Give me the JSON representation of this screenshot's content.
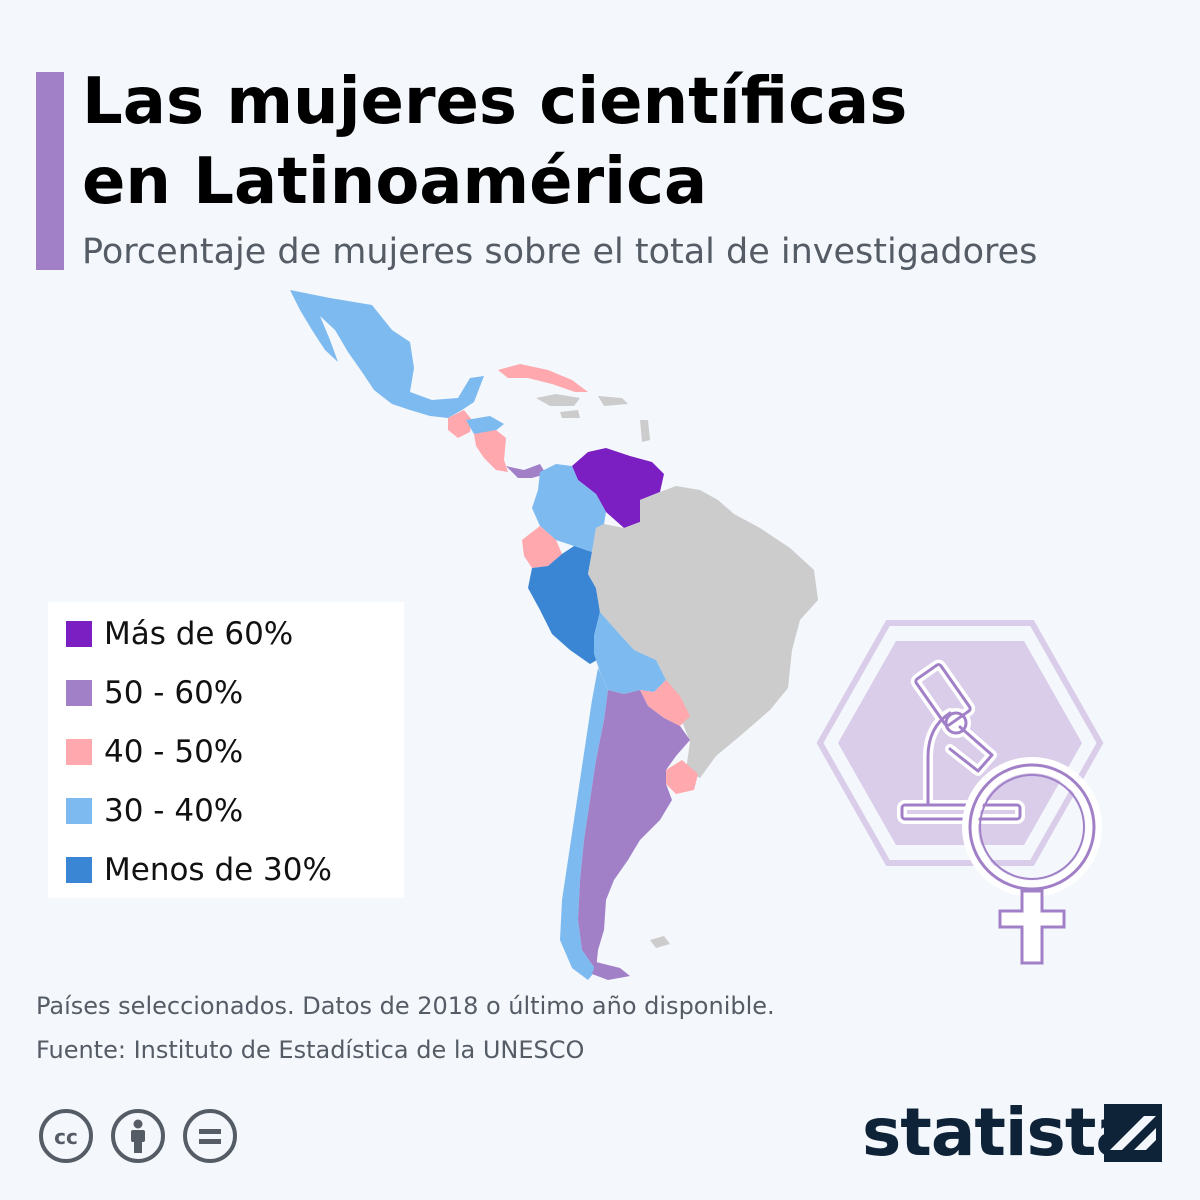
{
  "header": {
    "title_line1": "Las mujeres científicas",
    "title_line2": "en Latinoamérica",
    "subtitle": "Porcentaje de mujeres sobre el total de investigadores"
  },
  "legend": [
    {
      "label": "Más de 60%",
      "color": "#7b1fc2"
    },
    {
      "label": "50 - 60%",
      "color": "#a180c8"
    },
    {
      "label": "40 - 50%",
      "color": "#ffa8ae"
    },
    {
      "label": "30 - 40%",
      "color": "#7dbaf0"
    },
    {
      "label": "Menos de 30%",
      "color": "#3a86d4"
    }
  ],
  "no_data_color": "#cccccc",
  "icons": {
    "illustration": "microscope-female-symbol-icon",
    "license": [
      "creative-commons-icon",
      "attribution-icon",
      "no-derivatives-icon"
    ]
  },
  "footer": {
    "note": "Países seleccionados. Datos de 2018 o último año disponible.",
    "source": "Fuente: Instituto de Estadística de la UNESCO",
    "brand": "statista"
  }
}
